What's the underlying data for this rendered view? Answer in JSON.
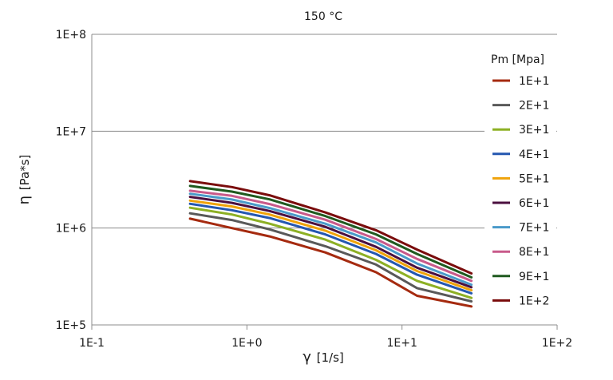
{
  "chart_data": {
    "type": "line",
    "title": "150 °C",
    "xlabel_symbol": "γ",
    "xlabel_unit": "[1/s]",
    "ylabel_symbol": "η",
    "ylabel_unit": "[Pa*s]",
    "xscale": "log",
    "yscale": "log",
    "xlim": [
      0.1,
      100
    ],
    "ylim": [
      100000,
      100000000
    ],
    "x_ticks": [
      0.1,
      1,
      10,
      100
    ],
    "x_tick_labels": [
      "1E-1",
      "1E+0",
      "1E+1",
      "1E+2"
    ],
    "y_ticks": [
      100000,
      1000000,
      10000000,
      100000000
    ],
    "y_tick_labels": [
      "1E+5",
      "1E+6",
      "1E+7",
      "1E+8"
    ],
    "grid": {
      "y_major": true,
      "x_major": false
    },
    "legend": {
      "title": "Pm [Mpa]",
      "placement": "right"
    },
    "x": [
      0.43,
      0.8,
      1.4,
      3.2,
      6.8,
      12.5,
      28
    ],
    "series": [
      {
        "name": "1E+1",
        "color": "#a52a0f",
        "values": [
          1250000,
          1000000,
          820000,
          560000,
          350000,
          200000,
          155000
        ]
      },
      {
        "name": "2E+1",
        "color": "#595959",
        "values": [
          1420000,
          1210000,
          970000,
          650000,
          420000,
          240000,
          175000
        ]
      },
      {
        "name": "3E+1",
        "color": "#8db024",
        "values": [
          1620000,
          1380000,
          1110000,
          760000,
          470000,
          285000,
          190000
        ]
      },
      {
        "name": "4E+1",
        "color": "#2457b0",
        "values": [
          1780000,
          1530000,
          1270000,
          860000,
          540000,
          330000,
          212000
        ]
      },
      {
        "name": "5E+1",
        "color": "#f0a30a",
        "values": [
          1920000,
          1670000,
          1380000,
          940000,
          590000,
          360000,
          228000
        ]
      },
      {
        "name": "6E+1",
        "color": "#4b0f3f",
        "values": [
          2100000,
          1820000,
          1500000,
          1030000,
          640000,
          390000,
          245000
        ]
      },
      {
        "name": "7E+1",
        "color": "#4a9ac9",
        "values": [
          2260000,
          1970000,
          1610000,
          1110000,
          710000,
          430000,
          260000
        ]
      },
      {
        "name": "8E+1",
        "color": "#c85a8a",
        "values": [
          2430000,
          2150000,
          1770000,
          1220000,
          770000,
          480000,
          285000
        ]
      },
      {
        "name": "9E+1",
        "color": "#1f5a1f",
        "values": [
          2720000,
          2380000,
          1980000,
          1330000,
          860000,
          540000,
          310000
        ]
      },
      {
        "name": "1E+2",
        "color": "#7a0c0c",
        "values": [
          3050000,
          2650000,
          2180000,
          1450000,
          950000,
          600000,
          340000
        ]
      }
    ]
  }
}
